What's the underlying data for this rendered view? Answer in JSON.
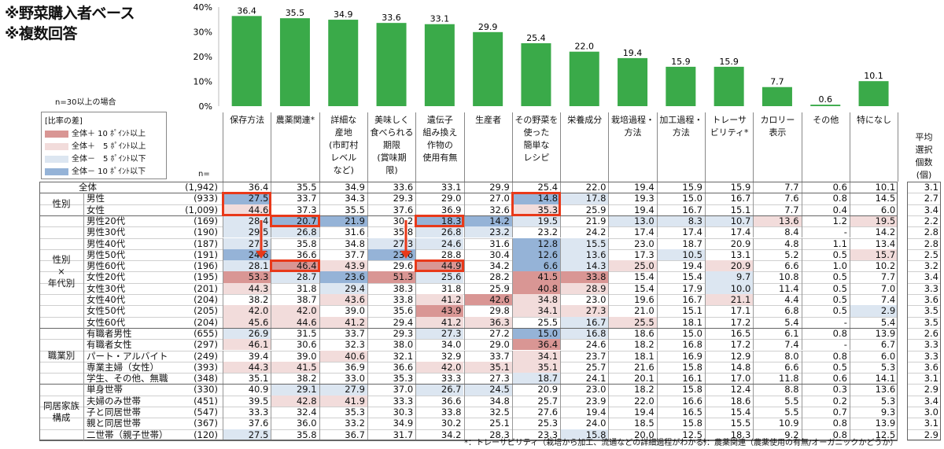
{
  "notes": [
    "※野菜購入者ベース",
    "※複数回答"
  ],
  "n_note": "n=30以上の場合",
  "legend": {
    "title": "[比率の差]",
    "items": [
      {
        "label": "全体＋ 10 ﾎﾟｲﾝﾄ以上",
        "color": "#d99694"
      },
      {
        "label": "全体＋　5 ﾎﾟｲﾝﾄ以上",
        "color": "#f2dcdb"
      },
      {
        "label": "全体－　5 ﾎﾟｲﾝﾄ以下",
        "color": "#dce6f1"
      },
      {
        "label": "全体－ 10 ﾎﾟｲﾝﾄ以下",
        "color": "#95b3d7"
      }
    ]
  },
  "n_header": "n=",
  "avg_header": "平均\n選択\n個数\n(個)",
  "bar_color": "#3aaa49",
  "chart_data": {
    "type": "bar",
    "categories": [
      "保存方法",
      "農薬関連*",
      "詳細な\n産地\n(市町村\nレベル\nなど)",
      "美味しく\n食べられる\n期限\n(賞味期\n限)",
      "遺伝子\n組み換え\n作物の\n使用有無",
      "生産者",
      "その野菜を\n使った\n簡単な\nレシピ",
      "栄養成分",
      "栽培過程・\n方法",
      "加工過程・\n方法",
      "トレーサ\nビリティ*",
      "カロリー\n表示",
      "その他",
      "特になし"
    ],
    "values": [
      36.4,
      35.5,
      34.9,
      33.6,
      33.1,
      29.9,
      25.4,
      22.0,
      19.4,
      15.9,
      15.9,
      7.7,
      0.6,
      10.1
    ],
    "value_labels": [
      "36.4",
      "35.5",
      "34.9",
      "33.6",
      "33.1",
      "29.9",
      "25.4",
      "22.0",
      "19.4",
      "15.9",
      "15.9",
      "7.7",
      "0.6",
      "10.1"
    ],
    "ylim": [
      0,
      40
    ],
    "yticks": [
      "0%",
      "10%",
      "20%",
      "30%",
      "40%"
    ],
    "grid": false
  },
  "table": {
    "groups": [
      {
        "label": "",
        "rows": 1
      },
      {
        "label": "性別",
        "rows": 2
      },
      {
        "label": "性別\n×\n年代別",
        "rows": 10
      },
      {
        "label": "職業別",
        "rows": 5
      },
      {
        "label": "同居家族\n構成",
        "rows": 5
      }
    ],
    "rows": [
      {
        "label": "全体",
        "n": "(1,942)",
        "vals": [
          "36.4",
          "35.5",
          "34.9",
          "33.6",
          "33.1",
          "29.9",
          "25.4",
          "22.0",
          "19.4",
          "15.9",
          "15.9",
          "7.7",
          "0.6",
          "10.1"
        ],
        "avg": "3.1",
        "shade": [
          0,
          0,
          0,
          0,
          0,
          0,
          0,
          0,
          0,
          0,
          0,
          0,
          0,
          0
        ]
      },
      {
        "label": "男性",
        "n": "(933)",
        "vals": [
          "27.5",
          "33.7",
          "34.3",
          "29.3",
          "29.0",
          "27.0",
          "14.8",
          "17.8",
          "19.3",
          "15.0",
          "16.7",
          "7.6",
          "0.8",
          "14.5"
        ],
        "avg": "2.7",
        "shade": [
          -2,
          0,
          0,
          0,
          0,
          0,
          -2,
          -1,
          0,
          0,
          0,
          0,
          0,
          0
        ]
      },
      {
        "label": "女性",
        "n": "(1,009)",
        "vals": [
          "44.6",
          "37.3",
          "35.5",
          "37.6",
          "36.9",
          "32.6",
          "35.3",
          "25.9",
          "19.4",
          "16.7",
          "15.1",
          "7.7",
          "0.4",
          "6.0"
        ],
        "avg": "3.4",
        "shade": [
          1,
          0,
          0,
          0,
          0,
          0,
          1,
          0,
          0,
          0,
          0,
          0,
          0,
          0
        ]
      },
      {
        "label": "男性20代",
        "n": "(169)",
        "vals": [
          "28.4",
          "20.7",
          "21.9",
          "30.2",
          "18.3",
          "14.2",
          "19.5",
          "21.9",
          "13.0",
          "8.3",
          "10.7",
          "13.6",
          "1.2",
          "19.5"
        ],
        "avg": "2.2",
        "shade": [
          -1,
          -2,
          -2,
          0,
          -2,
          -2,
          -1,
          0,
          -1,
          -1,
          -1,
          1,
          0,
          1
        ]
      },
      {
        "label": "男性30代",
        "n": "(190)",
        "vals": [
          "29.5",
          "26.8",
          "31.6",
          "35.8",
          "26.8",
          "23.2",
          "23.2",
          "24.2",
          "17.4",
          "17.4",
          "17.4",
          "8.4",
          "-",
          "14.2"
        ],
        "avg": "2.8",
        "shade": [
          -1,
          -1,
          0,
          0,
          -1,
          -1,
          0,
          0,
          0,
          0,
          0,
          0,
          0,
          0
        ]
      },
      {
        "label": "男性40代",
        "n": "(187)",
        "vals": [
          "27.3",
          "35.8",
          "34.8",
          "27.3",
          "24.6",
          "31.6",
          "12.8",
          "15.5",
          "23.0",
          "18.7",
          "20.9",
          "4.8",
          "1.1",
          "13.4"
        ],
        "avg": "2.8",
        "shade": [
          -1,
          0,
          0,
          -1,
          -1,
          0,
          -2,
          -1,
          0,
          0,
          0,
          0,
          0,
          0
        ]
      },
      {
        "label": "男性50代",
        "n": "(191)",
        "vals": [
          "24.6",
          "36.6",
          "37.7",
          "23.6",
          "28.8",
          "30.4",
          "12.6",
          "13.6",
          "17.3",
          "10.5",
          "13.1",
          "5.2",
          "0.5",
          "15.7"
        ],
        "avg": "2.5",
        "shade": [
          -2,
          0,
          0,
          -2,
          0,
          0,
          -2,
          -1,
          0,
          -1,
          0,
          0,
          0,
          1
        ]
      },
      {
        "label": "男性60代",
        "n": "(196)",
        "vals": [
          "28.1",
          "46.4",
          "43.9",
          "29.6",
          "44.9",
          "34.2",
          "6.6",
          "14.3",
          "25.0",
          "19.4",
          "20.9",
          "6.6",
          "1.0",
          "10.2"
        ],
        "avg": "3.2",
        "shade": [
          -1,
          2,
          1,
          0,
          2,
          0,
          -2,
          -1,
          1,
          0,
          1,
          0,
          0,
          0
        ]
      },
      {
        "label": "女性20代",
        "n": "(195)",
        "vals": [
          "53.3",
          "28.7",
          "23.6",
          "51.3",
          "25.6",
          "28.2",
          "41.5",
          "33.8",
          "15.4",
          "15.4",
          "9.7",
          "10.8",
          "0.5",
          "7.7"
        ],
        "avg": "3.4",
        "shade": [
          2,
          -1,
          -2,
          2,
          -1,
          0,
          2,
          2,
          0,
          0,
          -1,
          0,
          0,
          0
        ]
      },
      {
        "label": "女性30代",
        "n": "(201)",
        "vals": [
          "44.3",
          "31.8",
          "29.4",
          "38.3",
          "31.8",
          "25.9",
          "40.8",
          "28.9",
          "15.4",
          "17.9",
          "10.0",
          "11.4",
          "0.5",
          "7.0"
        ],
        "avg": "3.3",
        "shade": [
          1,
          0,
          -1,
          0,
          0,
          0,
          2,
          1,
          0,
          0,
          -1,
          0,
          0,
          0
        ]
      },
      {
        "label": "女性40代",
        "n": "(204)",
        "vals": [
          "38.2",
          "38.7",
          "43.6",
          "33.8",
          "41.2",
          "42.6",
          "34.8",
          "23.0",
          "19.6",
          "16.7",
          "21.1",
          "4.4",
          "0.5",
          "7.4"
        ],
        "avg": "3.6",
        "shade": [
          0,
          0,
          1,
          0,
          1,
          2,
          1,
          0,
          0,
          0,
          1,
          0,
          0,
          0
        ]
      },
      {
        "label": "女性50代",
        "n": "(205)",
        "vals": [
          "42.0",
          "42.0",
          "39.0",
          "35.6",
          "43.9",
          "29.8",
          "34.1",
          "27.3",
          "21.0",
          "15.1",
          "17.1",
          "6.8",
          "0.5",
          "2.9"
        ],
        "avg": "3.5",
        "shade": [
          1,
          1,
          0,
          0,
          2,
          0,
          1,
          1,
          0,
          0,
          0,
          0,
          0,
          -1
        ]
      },
      {
        "label": "女性60代",
        "n": "(204)",
        "vals": [
          "45.6",
          "44.6",
          "41.2",
          "29.4",
          "41.2",
          "36.3",
          "25.5",
          "16.7",
          "25.5",
          "18.1",
          "17.2",
          "5.4",
          "-",
          "5.4"
        ],
        "avg": "3.5",
        "shade": [
          1,
          1,
          1,
          0,
          1,
          1,
          0,
          -1,
          1,
          0,
          0,
          0,
          0,
          0
        ]
      },
      {
        "label": "有職者男性",
        "n": "(655)",
        "vals": [
          "26.9",
          "31.5",
          "33.7",
          "29.3",
          "27.3",
          "27.2",
          "15.0",
          "16.8",
          "18.6",
          "15.0",
          "16.5",
          "6.1",
          "0.8",
          "13.9"
        ],
        "avg": "2.6",
        "shade": [
          -1,
          0,
          0,
          0,
          -1,
          0,
          -2,
          -1,
          0,
          0,
          0,
          0,
          0,
          0
        ]
      },
      {
        "label": "有職者女性",
        "n": "(297)",
        "vals": [
          "46.1",
          "30.6",
          "32.3",
          "38.0",
          "34.0",
          "29.0",
          "36.4",
          "24.6",
          "18.2",
          "16.8",
          "17.2",
          "7.4",
          "-",
          "6.7"
        ],
        "avg": "3.3",
        "shade": [
          1,
          0,
          0,
          0,
          0,
          0,
          2,
          0,
          0,
          0,
          0,
          0,
          0,
          0
        ]
      },
      {
        "label": "パート・アルバイト",
        "n": "(249)",
        "vals": [
          "39.4",
          "39.0",
          "40.6",
          "32.1",
          "32.9",
          "33.7",
          "34.1",
          "23.7",
          "18.1",
          "16.9",
          "12.9",
          "8.0",
          "0.8",
          "6.0"
        ],
        "avg": "3.3",
        "shade": [
          0,
          0,
          1,
          0,
          0,
          0,
          1,
          0,
          0,
          0,
          0,
          0,
          0,
          0
        ]
      },
      {
        "label": "専業主婦（女性）",
        "n": "(393)",
        "vals": [
          "44.3",
          "41.5",
          "36.9",
          "36.6",
          "42.0",
          "35.1",
          "35.1",
          "25.7",
          "21.6",
          "15.8",
          "14.8",
          "6.6",
          "0.5",
          "5.3"
        ],
        "avg": "3.6",
        "shade": [
          1,
          1,
          0,
          0,
          1,
          1,
          1,
          0,
          0,
          0,
          0,
          0,
          0,
          0
        ]
      },
      {
        "label": "学生、その他、無職",
        "n": "(348)",
        "vals": [
          "35.1",
          "38.2",
          "33.0",
          "35.3",
          "33.3",
          "27.3",
          "18.7",
          "24.1",
          "20.1",
          "16.1",
          "17.0",
          "11.8",
          "0.6",
          "14.1"
        ],
        "avg": "3.1",
        "shade": [
          0,
          0,
          0,
          0,
          0,
          0,
          -1,
          0,
          0,
          0,
          0,
          0,
          0,
          0
        ]
      },
      {
        "label": "単身世帯",
        "n": "(330)",
        "vals": [
          "40.9",
          "29.1",
          "27.9",
          "37.0",
          "26.7",
          "24.5",
          "20.9",
          "23.0",
          "18.2",
          "15.8",
          "12.4",
          "8.8",
          "0.3",
          "13.6"
        ],
        "avg": "2.9",
        "shade": [
          0,
          -1,
          -1,
          0,
          -1,
          -1,
          0,
          0,
          0,
          0,
          0,
          0,
          0,
          0
        ]
      },
      {
        "label": "夫婦のみ世帯",
        "n": "(451)",
        "vals": [
          "39.5",
          "42.8",
          "41.9",
          "33.3",
          "36.6",
          "34.8",
          "25.7",
          "23.9",
          "22.0",
          "16.6",
          "18.6",
          "5.5",
          "0.2",
          "5.3"
        ],
        "avg": "3.4",
        "shade": [
          0,
          1,
          1,
          0,
          0,
          0,
          0,
          0,
          0,
          0,
          0,
          0,
          0,
          0
        ]
      },
      {
        "label": "子と同居世帯",
        "n": "(547)",
        "vals": [
          "33.3",
          "32.4",
          "35.3",
          "30.3",
          "33.8",
          "32.5",
          "27.6",
          "19.4",
          "19.4",
          "16.5",
          "15.4",
          "5.5",
          "0.7",
          "9.3"
        ],
        "avg": "3.0",
        "shade": [
          0,
          0,
          0,
          0,
          0,
          0,
          0,
          0,
          0,
          0,
          0,
          0,
          0,
          0
        ]
      },
      {
        "label": "親と同居世帯",
        "n": "(367)",
        "vals": [
          "37.6",
          "36.0",
          "33.2",
          "34.9",
          "30.2",
          "25.1",
          "25.3",
          "24.0",
          "18.5",
          "15.8",
          "15.5",
          "10.9",
          "0.8",
          "13.9"
        ],
        "avg": "3.1",
        "shade": [
          0,
          0,
          0,
          0,
          0,
          0,
          0,
          0,
          0,
          0,
          0,
          0,
          0,
          0
        ]
      },
      {
        "label": "二世帯（親子世帯）",
        "n": "(120)",
        "vals": [
          "27.5",
          "35.8",
          "36.7",
          "31.7",
          "34.2",
          "28.3",
          "23.3",
          "15.8",
          "20.0",
          "12.5",
          "18.3",
          "9.2",
          "0.8",
          "12.5"
        ],
        "avg": "2.9",
        "shade": [
          -1,
          0,
          0,
          0,
          0,
          0,
          0,
          -1,
          0,
          0,
          0,
          0,
          0,
          0
        ]
      }
    ]
  },
  "footnotes": [
    "*：トレーサビリティ（栽培から加工、流通などの詳細過程がわかる）",
    "*：農薬関連（農薬使用の有無/オーガニックかどうか）"
  ],
  "highlight_color": "#e8391a"
}
